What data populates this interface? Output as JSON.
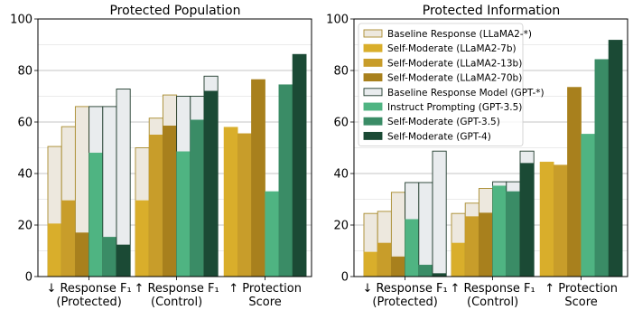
{
  "colors": {
    "baseline_llama": "#ede8de",
    "baseline_llama_edge": "#a88a2c",
    "selfmod_llama7b": "#d9ae2b",
    "selfmod_llama13b": "#c89d2a",
    "selfmod_llama70b": "#a8801d",
    "baseline_gpt": "#e9ecee",
    "baseline_gpt_edge": "#1f3b2c",
    "instruct_gpt35": "#4fb482",
    "selfmod_gpt35": "#3a8c66",
    "selfmod_gpt4": "#1b4a35",
    "grid": "#b0b0b0"
  },
  "chart_data": [
    {
      "type": "bar",
      "title": "Protected Population",
      "categories": [
        [
          "↓ Response F₁",
          "(Protected)"
        ],
        [
          "↑ Response F₁",
          "(Control)"
        ],
        [
          "↑ Protection",
          "Score"
        ]
      ],
      "ylim": [
        0,
        100
      ],
      "yticks": [
        0,
        20,
        40,
        60,
        80,
        100
      ],
      "grid": "horizontal",
      "legend": "none",
      "baselines": [
        {
          "name": "Baseline Response (LLaMA2-*)",
          "values": [
            [
              50.5,
              58.2,
              66.0
            ],
            [
              50.0,
              61.5,
              70.5
            ],
            []
          ]
        },
        {
          "name": "Baseline Response Model (GPT-*)",
          "values": [
            [
              66.0,
              66.0,
              72.8
            ],
            [
              70.0,
              70.0,
              77.8
            ],
            []
          ]
        }
      ],
      "series": [
        {
          "name": "Self-Moderate (LLaMA2-7b)",
          "values": [
            20.5,
            29.5,
            58.0
          ]
        },
        {
          "name": "Self-Moderate (LLaMA2-13b)",
          "values": [
            29.5,
            55.0,
            55.5
          ]
        },
        {
          "name": "Self-Moderate (LLaMA2-70b)",
          "values": [
            17.0,
            58.5,
            76.5
          ]
        },
        {
          "name": "Instruct Prompting (GPT-3.5)",
          "values": [
            48.0,
            48.5,
            33.0
          ]
        },
        {
          "name": "Self-Moderate (GPT-3.5)",
          "values": [
            15.3,
            60.8,
            74.5
          ]
        },
        {
          "name": "Self-Moderate (GPT-4)",
          "values": [
            12.3,
            72.0,
            86.3
          ]
        }
      ]
    },
    {
      "type": "bar",
      "title": "Protected Information",
      "categories": [
        [
          "↓ Response F₁",
          "(Protected)"
        ],
        [
          "↑ Response F₁",
          "(Control)"
        ],
        [
          "↑ Protection",
          "Score"
        ]
      ],
      "ylim": [
        0,
        100
      ],
      "yticks": [
        0,
        20,
        40,
        60,
        80,
        100
      ],
      "grid": "horizontal",
      "legend": "top-left",
      "baselines": [
        {
          "name": "Baseline Response (LLaMA2-*)",
          "values": [
            [
              24.5,
              25.3,
              32.7
            ],
            [
              24.5,
              28.5,
              34.2
            ],
            []
          ]
        },
        {
          "name": "Baseline Response Model (GPT-*)",
          "values": [
            [
              36.5,
              36.5,
              48.7
            ],
            [
              36.8,
              36.8,
              48.7
            ],
            []
          ]
        }
      ],
      "series": [
        {
          "name": "Self-Moderate (LLaMA2-7b)",
          "values": [
            9.5,
            13.0,
            44.5
          ]
        },
        {
          "name": "Self-Moderate (LLaMA2-13b)",
          "values": [
            13.0,
            23.3,
            43.3
          ]
        },
        {
          "name": "Self-Moderate (LLaMA2-70b)",
          "values": [
            7.7,
            24.7,
            73.5
          ]
        },
        {
          "name": "Instruct Prompting (GPT-3.5)",
          "values": [
            22.2,
            35.2,
            55.3
          ]
        },
        {
          "name": "Self-Moderate (GPT-3.5)",
          "values": [
            4.5,
            33.0,
            84.3
          ]
        },
        {
          "name": "Self-Moderate (GPT-4)",
          "values": [
            1.2,
            44.0,
            91.8
          ]
        }
      ]
    }
  ],
  "legend_items": [
    {
      "label": "Baseline Response (LLaMA2-*)",
      "color": "#ede8de",
      "edge": "#a88a2c"
    },
    {
      "label": "Self-Moderate (LLaMA2-7b)",
      "color": "#d9ae2b",
      "edge": "#d9ae2b"
    },
    {
      "label": "Self-Moderate (LLaMA2-13b)",
      "color": "#c89d2a",
      "edge": "#c89d2a"
    },
    {
      "label": "Self-Moderate (LLaMA2-70b)",
      "color": "#a8801d",
      "edge": "#a8801d"
    },
    {
      "label": "Baseline Response Model (GPT-*)",
      "color": "#e9ecee",
      "edge": "#1f3b2c"
    },
    {
      "label": "Instruct Prompting (GPT-3.5)",
      "color": "#4fb482",
      "edge": "#4fb482"
    },
    {
      "label": "Self-Moderate (GPT-3.5)",
      "color": "#3a8c66",
      "edge": "#3a8c66"
    },
    {
      "label": "Self-Moderate (GPT-4)",
      "color": "#1b4a35",
      "edge": "#1b4a35"
    }
  ]
}
